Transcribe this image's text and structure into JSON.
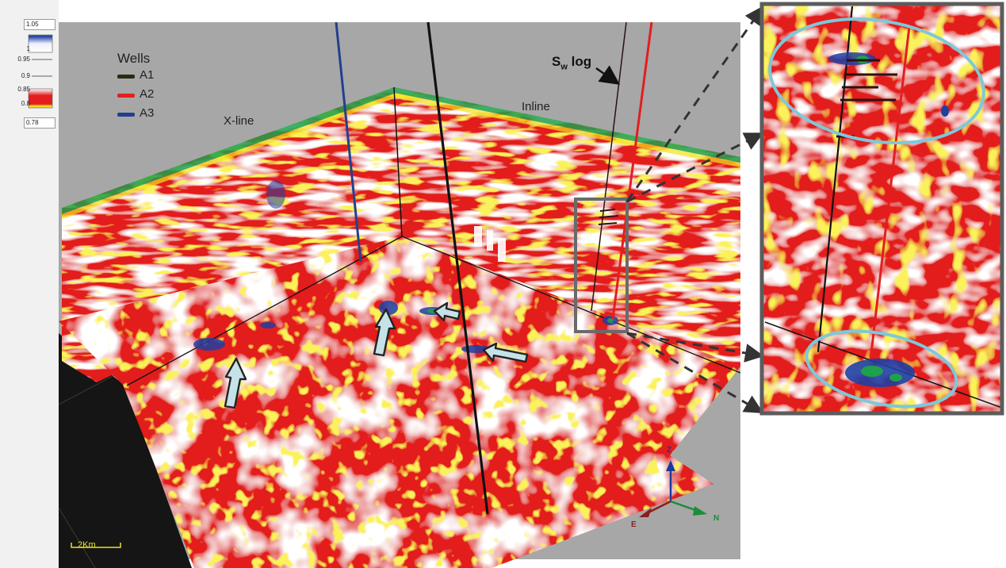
{
  "color_bar": {
    "max_value": "1.05",
    "min_value": "0.78",
    "tick_labels": [
      "1",
      "0.95",
      "0.9",
      "0.85",
      "0.8"
    ]
  },
  "legend": {
    "title": "Wells",
    "items": [
      {
        "label": "A1",
        "color": "#2c2a14"
      },
      {
        "label": "A2",
        "color": "#e31e1e"
      },
      {
        "label": "A3",
        "color": "#23408e"
      }
    ]
  },
  "labels": {
    "x_line": "X-line",
    "inline": "Inline",
    "sw_log_main": "S",
    "sw_log_sub": "w",
    "sw_log_rest": " log"
  },
  "scale_bar": {
    "text": "2Km"
  },
  "axes": {
    "z": "Z",
    "east": "E",
    "north": "N"
  },
  "colors": {
    "seismic_red": "#e31e1e",
    "seismic_yellow": "#f5e11b",
    "seismic_blue": "#1f3fa3",
    "seismic_green": "#1fa04a",
    "viewer_background": "#a7a7a7",
    "highlight_ellipse": "#7ec8d9",
    "arrow_fill": "#c5e2e8"
  }
}
